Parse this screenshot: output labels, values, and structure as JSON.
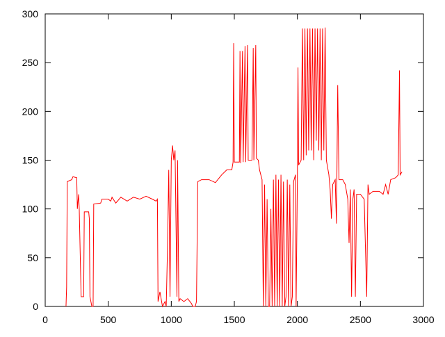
{
  "chart_data": {
    "type": "line",
    "x": [
      165,
      170,
      175,
      210,
      220,
      250,
      255,
      265,
      270,
      285,
      305,
      310,
      345,
      350,
      355,
      370,
      380,
      385,
      440,
      450,
      500,
      520,
      530,
      560,
      600,
      650,
      700,
      750,
      800,
      850,
      880,
      890,
      895,
      910,
      930,
      950,
      960,
      970,
      980,
      990,
      1000,
      1010,
      1020,
      1030,
      1045,
      1050,
      1060,
      1070,
      1100,
      1130,
      1160,
      1170,
      1190,
      1200,
      1210,
      1240,
      1300,
      1350,
      1400,
      1440,
      1480,
      1490,
      1495,
      1500,
      1540,
      1545,
      1550,
      1565,
      1570,
      1585,
      1590,
      1605,
      1610,
      1640,
      1650,
      1655,
      1670,
      1675,
      1690,
      1700,
      1720,
      1730,
      1740,
      1750,
      1760,
      1770,
      1780,
      1790,
      1800,
      1810,
      1820,
      1830,
      1840,
      1850,
      1860,
      1870,
      1880,
      1890,
      1900,
      1910,
      1920,
      1930,
      1940,
      1950,
      1960,
      1970,
      1985,
      1990,
      2000,
      2005,
      2010,
      2030,
      2040,
      2050,
      2060,
      2070,
      2080,
      2090,
      2100,
      2110,
      2120,
      2130,
      2140,
      2150,
      2160,
      2170,
      2180,
      2190,
      2200,
      2210,
      2220,
      2230,
      2250,
      2260,
      2270,
      2280,
      2300,
      2310,
      2320,
      2330,
      2360,
      2380,
      2400,
      2410,
      2420,
      2430,
      2440,
      2450,
      2460,
      2470,
      2500,
      2530,
      2550,
      2560,
      2570,
      2600,
      2650,
      2680,
      2700,
      2720,
      2740,
      2780,
      2800,
      2810,
      2815,
      2830
    ],
    "series": [
      {
        "color": "#ff0000",
        "values": [
          0,
          20,
          128,
          130,
          133,
          132,
          100,
          115,
          100,
          10,
          10,
          97,
          97,
          90,
          10,
          0,
          0,
          105,
          106,
          110,
          110,
          108,
          112,
          106,
          112,
          108,
          112,
          110,
          113,
          110,
          108,
          110,
          5,
          15,
          0,
          5,
          0,
          60,
          140,
          10,
          150,
          165,
          150,
          160,
          10,
          150,
          5,
          8,
          5,
          8,
          3,
          0,
          0,
          5,
          128,
          130,
          130,
          127,
          135,
          140,
          140,
          148,
          270,
          148,
          148,
          262,
          147,
          262,
          148,
          267,
          148,
          268,
          150,
          150,
          265,
          150,
          268,
          152,
          150,
          140,
          130,
          0,
          125,
          0,
          110,
          0,
          0,
          100,
          0,
          130,
          0,
          135,
          0,
          130,
          0,
          135,
          0,
          128,
          0,
          10,
          130,
          0,
          125,
          0,
          10,
          128,
          135,
          0,
          130,
          245,
          145,
          150,
          285,
          150,
          285,
          155,
          285,
          160,
          285,
          160,
          285,
          150,
          285,
          170,
          285,
          160,
          285,
          150,
          285,
          160,
          286,
          150,
          135,
          120,
          90,
          125,
          130,
          85,
          227,
          130,
          130,
          125,
          110,
          65,
          120,
          10,
          110,
          120,
          10,
          115,
          115,
          110,
          10,
          125,
          115,
          118,
          118,
          115,
          125,
          115,
          130,
          132,
          135,
          242,
          135,
          138
        ]
      }
    ],
    "xlim": [
      0,
      3000
    ],
    "ylim": [
      0,
      300
    ],
    "xticks": [
      0,
      500,
      1000,
      1500,
      2000,
      2500,
      3000
    ],
    "yticks": [
      0,
      50,
      100,
      150,
      200,
      250,
      300
    ]
  }
}
